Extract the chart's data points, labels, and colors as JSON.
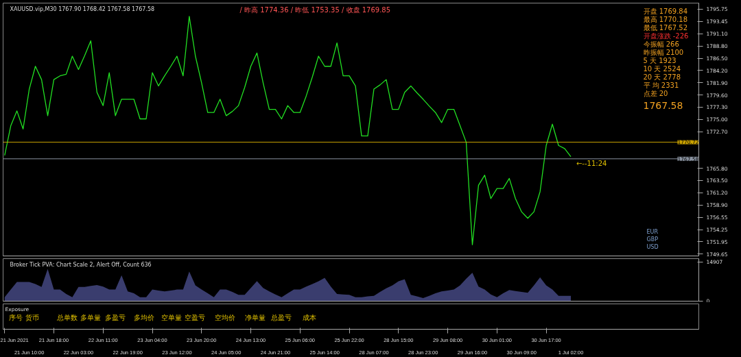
{
  "chart_data": [
    {
      "type": "line",
      "title": "XAUUSD.vip,M30  1767.90 1768.42 1767.58 1767.58",
      "subtitle": "/ 昨高 1774.36  / 昨低 1753.35  / 收盘 1769.85",
      "categories": [
        null,
        null,
        null,
        null,
        null,
        null,
        null,
        null,
        null,
        null,
        null,
        null,
        null,
        null,
        null,
        null,
        null,
        null,
        null,
        null,
        null,
        null,
        null,
        null,
        null,
        null,
        null,
        null,
        null,
        null,
        null,
        null,
        null,
        null,
        null,
        null,
        null,
        null,
        null,
        null,
        null,
        null,
        null,
        null,
        null,
        null,
        null,
        null,
        null,
        null,
        null,
        null,
        null,
        null,
        null,
        null,
        null,
        null,
        null,
        null,
        null,
        null,
        null,
        null,
        null,
        null,
        null,
        null,
        null,
        null,
        null,
        null,
        null,
        null,
        null,
        null,
        null,
        null,
        null,
        null,
        null,
        null,
        null,
        null,
        null,
        null,
        null,
        null,
        null,
        null,
        null,
        null,
        null
      ],
      "series": [
        {
          "color": "#22e022",
          "values": [
            1768.2,
            1773.8,
            1776.6,
            1773.2,
            1780.7,
            1785.0,
            1782.5,
            1775.7,
            1782.5,
            1783.2,
            1783.5,
            1786.9,
            1784.4,
            1787.0,
            1789.8,
            1780.1,
            1777.6,
            1783.8,
            1775.7,
            1778.8,
            1778.8,
            1778.8,
            1775.1,
            1775.1,
            1783.8,
            1781.3,
            1783.2,
            1785.0,
            1786.9,
            1783.2,
            1794.4,
            1786.9,
            1781.9,
            1776.3,
            1776.3,
            1778.8,
            1775.7,
            1776.5,
            1777.6,
            1781.0,
            1785.0,
            1787.5,
            1781.9,
            1776.9,
            1776.9,
            1775.1,
            1777.6,
            1776.3,
            1776.3,
            1779.4,
            1783.0,
            1786.9,
            1785.0,
            1785.0,
            1789.4,
            1783.2,
            1783.2,
            1781.3,
            1771.9,
            1771.9,
            1780.7,
            1781.5,
            1782.5,
            1776.9,
            1776.9,
            1780.1,
            1781.3,
            1780.0,
            1778.8,
            1777.5,
            1776.3,
            1774.4,
            1776.9,
            1776.9,
            1773.8,
            1770.7,
            1751.4,
            1762.6,
            1764.5,
            1760.1,
            1762.0,
            1762.0,
            1763.9,
            1760.1,
            1757.6,
            1756.4,
            1757.6,
            1761.4,
            1770.1,
            1774.1,
            1770.1,
            1769.5,
            1768.0
          ]
        }
      ],
      "ylim": [
        1749.3,
        1796.9
      ],
      "yticks": [
        {
          "value": 1795.75,
          "label": "1795.75"
        },
        {
          "value": 1793.45,
          "label": "1793.45"
        },
        {
          "value": 1791.1,
          "label": "1791.10"
        },
        {
          "value": 1788.8,
          "label": "1788.80"
        },
        {
          "value": 1786.5,
          "label": "1786.50"
        },
        {
          "value": 1784.2,
          "label": "1784.20"
        },
        {
          "value": 1781.9,
          "label": "1781.90"
        },
        {
          "value": 1779.6,
          "label": "1779.60"
        },
        {
          "value": 1777.3,
          "label": "1777.30"
        },
        {
          "value": 1775,
          "label": "1775.00"
        },
        {
          "value": 1772.7,
          "label": "1772.70"
        },
        {
          "value": 1765.8,
          "label": "1765.80"
        },
        {
          "value": 1763.5,
          "label": "1763.50"
        },
        {
          "value": 1761.2,
          "label": "1761.20"
        },
        {
          "value": 1758.9,
          "label": "1758.90"
        },
        {
          "value": 1756.55,
          "label": "1756.55"
        },
        {
          "value": 1754.25,
          "label": "1754.25"
        },
        {
          "value": 1751.95,
          "label": "1751.95"
        },
        {
          "value": 1749.65,
          "label": "1749.65"
        }
      ],
      "tick_labels": "y",
      "ref_lines": [
        {
          "axis": "y",
          "value": 1770.72,
          "label": "1770.72",
          "color": "#c8a000",
          "line_style": "solid"
        },
        {
          "axis": "y",
          "value": 1767.58,
          "label": "1767.58",
          "color": "#8a93a0",
          "line_style": "solid"
        }
      ],
      "annotations": [
        "开盘 1769.84",
        "最高 1770.18",
        "最低 1767.52",
        "开盘涨跌 -226",
        "今振幅 266",
        "昨振幅 2100",
        "5 天 1923",
        "10 天 2524",
        "20 天 2778",
        "平 均 2331",
        "点差 20",
        "1767.58",
        "EUR",
        "GBP",
        "USD",
        "←--11:24"
      ]
    },
    {
      "type": "area",
      "title": "Broker Tick PVA:  Chart Scale 2, Alert Off, Count 636",
      "categories": [
        null,
        null,
        null,
        null,
        null,
        null,
        null,
        null,
        null,
        null,
        null,
        null,
        null,
        null,
        null,
        null,
        null,
        null,
        null,
        null,
        null,
        null,
        null,
        null,
        null,
        null,
        null,
        null,
        null,
        null,
        null,
        null,
        null,
        null,
        null,
        null,
        null,
        null,
        null,
        null,
        null,
        null,
        null,
        null,
        null,
        null,
        null,
        null,
        null,
        null,
        null,
        null,
        null,
        null,
        null,
        null,
        null,
        null,
        null,
        null,
        null,
        null,
        null,
        null,
        null,
        null,
        null,
        null,
        null,
        null,
        null,
        null,
        null,
        null,
        null,
        null,
        null,
        null,
        null,
        null,
        null,
        null,
        null,
        null,
        null,
        null,
        null,
        null,
        null,
        null,
        null,
        null,
        null
      ],
      "series": [
        {
          "color": "#3a3d6e",
          "values": [
            1500,
            4400,
            7300,
            7300,
            7300,
            6500,
            5400,
            12200,
            4400,
            4400,
            2700,
            1500,
            5400,
            5400,
            5800,
            6100,
            5500,
            4400,
            4400,
            9800,
            3700,
            3000,
            1500,
            1500,
            4400,
            4000,
            3700,
            4000,
            4400,
            4400,
            11200,
            6000,
            4400,
            3000,
            1500,
            4400,
            4400,
            3500,
            2400,
            2400,
            5000,
            7600,
            5000,
            3700,
            2500,
            1500,
            3000,
            4400,
            4400,
            5500,
            6500,
            7500,
            8800,
            5500,
            2700,
            2500,
            2400,
            1500,
            1500,
            1800,
            2000,
            3500,
            4900,
            6000,
            7500,
            8300,
            2400,
            1800,
            1200,
            2000,
            3000,
            3700,
            4000,
            4400,
            6000,
            8500,
            10800,
            5500,
            4400,
            2500,
            1500,
            3000,
            4200,
            3800,
            3500,
            3200,
            6000,
            9000,
            6000,
            4400,
            2000,
            2000,
            2000
          ]
        }
      ],
      "ylim": [
        0,
        16100
      ],
      "yticks": [
        0,
        14907
      ],
      "tick_labels": "y"
    },
    {
      "type": "other",
      "title": "Exposure",
      "annotations": [
        "序号",
        "货币",
        "总单数",
        "多单量",
        "多盈亏",
        "多均价",
        "空单量",
        "空盈亏",
        "空均价",
        "净单量",
        "总盈亏",
        "成本"
      ],
      "categories": [
        "21 Jun 2021",
        null,
        null,
        null,
        "21 Jun 10:00",
        null,
        null,
        null,
        "21 Jun 18:00",
        null,
        null,
        null,
        "22 Jun 03:00",
        null,
        null,
        null,
        "22 Jun 11:00",
        null,
        null,
        null,
        "22 Jun 19:00",
        null,
        null,
        null,
        "23 Jun 04:00",
        null,
        null,
        null,
        "23 Jun 12:00",
        null,
        null,
        null,
        "23 Jun 20:00",
        null,
        null,
        null,
        "24 Jun 05:00",
        null,
        null,
        null,
        "24 Jun 13:00",
        null,
        null,
        null,
        "24 Jun 21:00",
        null,
        null,
        null,
        "25 Jun 06:00",
        null,
        null,
        null,
        "25 Jun 14:00",
        null,
        null,
        null,
        "25 Jun 22:00",
        null,
        null,
        null,
        "28 Jun 07:00",
        null,
        null,
        null,
        "28 Jun 15:00",
        null,
        null,
        null,
        "28 Jun 23:00",
        null,
        null,
        null,
        "29 Jun 08:00",
        null,
        null,
        null,
        "29 Jun 16:00",
        null,
        null,
        null,
        "30 Jun 01:00",
        null,
        null,
        null,
        "30 Jun 09:00",
        null,
        null,
        null,
        "30 Jun 17:00",
        null,
        null,
        null,
        "1 Jul 02:00"
      ]
    }
  ]
}
